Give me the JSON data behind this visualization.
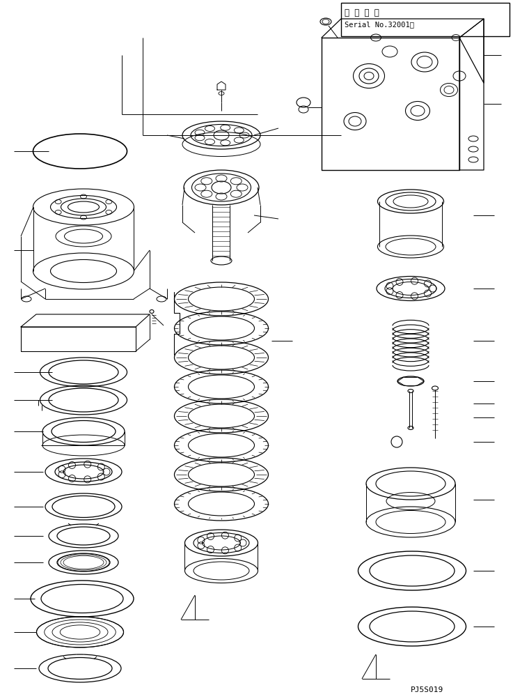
{
  "bg_color": "#ffffff",
  "line_color": "#000000",
  "part_number": "PJ5S019",
  "title_line1": "適 用 号 機",
  "title_line2": "Serial No.32001～"
}
